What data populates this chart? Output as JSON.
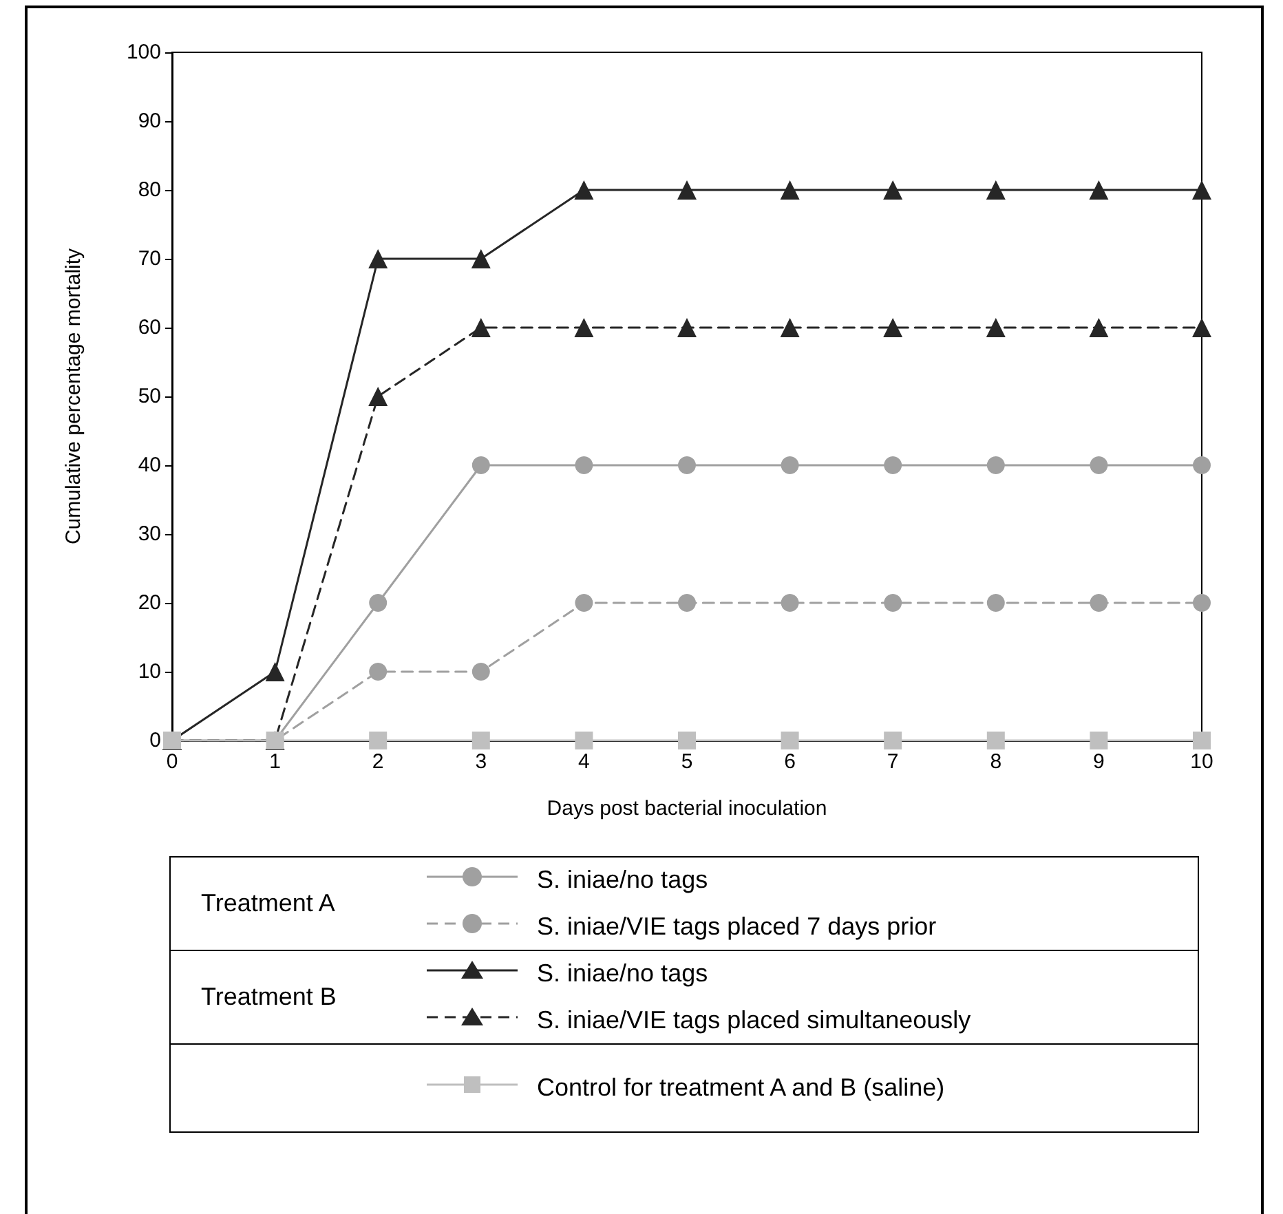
{
  "chart_data": {
    "type": "line",
    "xlabel": "Days post bacterial inoculation",
    "ylabel": "Cumulative percentage mortality",
    "x": [
      0,
      1,
      2,
      3,
      4,
      5,
      6,
      7,
      8,
      9,
      10
    ],
    "xlim": [
      0,
      10
    ],
    "xticks": [
      0,
      1,
      2,
      3,
      4,
      5,
      6,
      7,
      8,
      9,
      10
    ],
    "ylim": [
      0,
      100
    ],
    "yticks": [
      0,
      10,
      20,
      30,
      40,
      50,
      60,
      70,
      80,
      90,
      100
    ],
    "grid": false,
    "legend": "bottom",
    "annotations": [
      "Treatment A",
      "Treatment B"
    ],
    "series": [
      {
        "name": "S. iniae/no tags",
        "color": "#a0a0a0",
        "marker": "circle",
        "line_style": "solid",
        "values": [
          0,
          0,
          20,
          40,
          40,
          40,
          40,
          40,
          40,
          40,
          40
        ]
      },
      {
        "name": "S. iniae/VIE tags placed 7 days prior",
        "color": "#a0a0a0",
        "marker": "circle",
        "line_style": "dashed",
        "values": [
          0,
          0,
          10,
          10,
          20,
          20,
          20,
          20,
          20,
          20,
          20
        ]
      },
      {
        "name": "S. iniae/no tags",
        "color": "#262626",
        "marker": "triangle",
        "line_style": "solid",
        "values": [
          0,
          10,
          70,
          70,
          80,
          80,
          80,
          80,
          80,
          80,
          80
        ]
      },
      {
        "name": "S. iniae/VIE tags placed simultaneously",
        "color": "#262626",
        "marker": "triangle",
        "line_style": "dashed",
        "values": [
          0,
          0,
          50,
          60,
          60,
          60,
          60,
          60,
          60,
          60,
          60
        ]
      },
      {
        "name": "Control for treatment A and B (saline)",
        "color": "#bfbfbf",
        "marker": "square",
        "line_style": "solid",
        "values": [
          0,
          0,
          0,
          0,
          0,
          0,
          0,
          0,
          0,
          0,
          0
        ]
      }
    ]
  }
}
